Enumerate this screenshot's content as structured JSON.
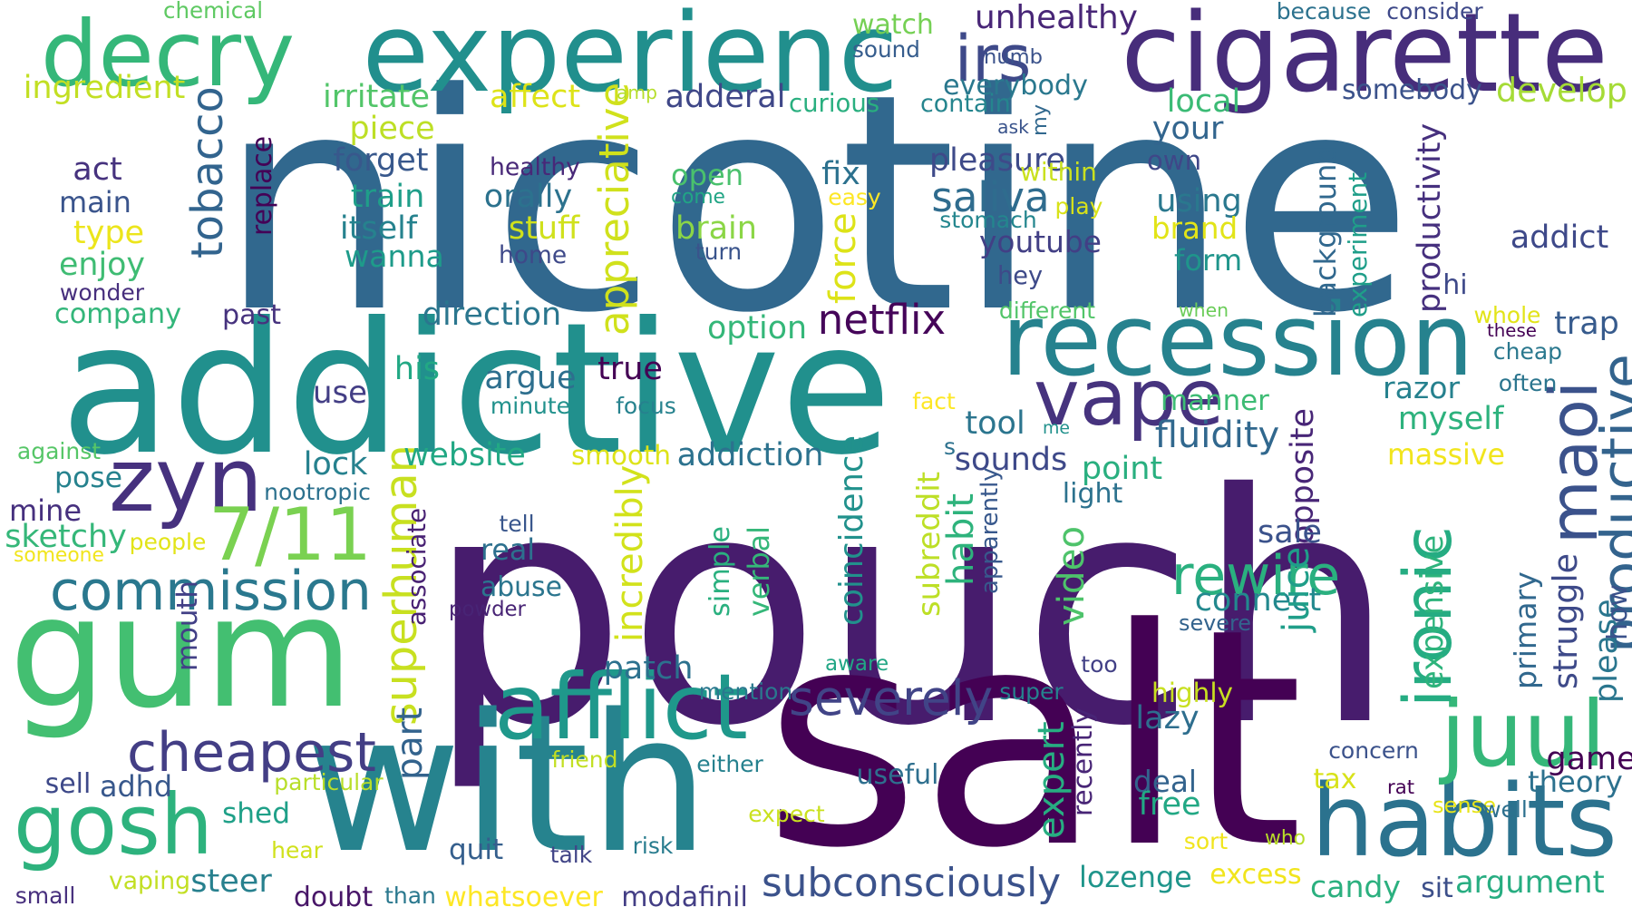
{
  "words": [
    {
      "text": "nicotine",
      "color": "#31688e"
    },
    {
      "text": "pouch",
      "color": "#471c6d"
    },
    {
      "text": "addictive",
      "color": "#21908d"
    },
    {
      "text": "salt",
      "color": "#440154"
    },
    {
      "text": "gum",
      "color": "#43bf71"
    },
    {
      "text": "with",
      "color": "#26838e"
    },
    {
      "text": "experienc",
      "color": "#218f8d"
    },
    {
      "text": "cigarette",
      "color": "#472d7b"
    },
    {
      "text": "decry",
      "color": "#35b779"
    },
    {
      "text": "recession",
      "color": "#26828e"
    },
    {
      "text": "habits",
      "color": "#2b728e"
    },
    {
      "text": "juul",
      "color": "#35b779"
    },
    {
      "text": "vape",
      "color": "#46337e"
    },
    {
      "text": "irs",
      "color": "#3e4989"
    },
    {
      "text": "zyn",
      "color": "#46317e"
    },
    {
      "text": "7/11",
      "color": "#7ad151"
    },
    {
      "text": "afflict",
      "color": "#1f988b"
    },
    {
      "text": "ironic",
      "color": "#25ac82"
    },
    {
      "text": "maoi",
      "color": "#3b528b"
    },
    {
      "text": "productive",
      "color": "#33638d"
    },
    {
      "text": "commission",
      "color": "#2a788e"
    },
    {
      "text": "gosh",
      "color": "#2db27d"
    },
    {
      "text": "cheapest",
      "color": "#433e85"
    },
    {
      "text": "severely",
      "color": "#414487"
    },
    {
      "text": "rewire",
      "color": "#2ab07f"
    },
    {
      "text": "superhuman",
      "color": "#c8e020"
    },
    {
      "text": "tobacco",
      "color": "#32648e"
    },
    {
      "text": "appreciative",
      "color": "#d0e11c"
    },
    {
      "text": "subconsciously",
      "color": "#3b528b"
    },
    {
      "text": "netflix",
      "color": "#450559"
    },
    {
      "text": "saliva",
      "color": "#2f6c8e"
    },
    {
      "text": "fluidity",
      "color": "#31688e"
    },
    {
      "text": "pleasure",
      "color": "#3e4a89"
    },
    {
      "text": "everybody",
      "color": "#2a788e"
    },
    {
      "text": "unhealthy",
      "color": "#482677"
    },
    {
      "text": "watch",
      "color": "#75d054"
    },
    {
      "text": "sound",
      "color": "#365d8d"
    },
    {
      "text": "numb",
      "color": "#3b528b"
    },
    {
      "text": "chemical",
      "color": "#5ec962"
    },
    {
      "text": "because",
      "color": "#2c728e"
    },
    {
      "text": "consider",
      "color": "#3e4989"
    },
    {
      "text": "somebody",
      "color": "#3b528b"
    },
    {
      "text": "develop",
      "color": "#a5db36"
    },
    {
      "text": "ingredient",
      "color": "#c2df23"
    },
    {
      "text": "irritate",
      "color": "#52c569"
    },
    {
      "text": "affect",
      "color": "#dde318"
    },
    {
      "text": "amp",
      "color": "#b5de2b"
    },
    {
      "text": "adderal",
      "color": "#3f4788"
    },
    {
      "text": "curious",
      "color": "#29af7f"
    },
    {
      "text": "contain",
      "color": "#25858e"
    },
    {
      "text": "local",
      "color": "#3bbb75"
    },
    {
      "text": "your",
      "color": "#32658e"
    },
    {
      "text": "own",
      "color": "#3f4788"
    },
    {
      "text": "piece",
      "color": "#bddf26"
    },
    {
      "text": "forget",
      "color": "#38588c"
    },
    {
      "text": "healthy",
      "color": "#482878"
    },
    {
      "text": "open",
      "color": "#4ac16d"
    },
    {
      "text": "fix",
      "color": "#2c718e"
    },
    {
      "text": "ask",
      "color": "#3a548c"
    },
    {
      "text": "my",
      "color": "#31688e"
    },
    {
      "text": "within",
      "color": "#cae11f"
    },
    {
      "text": "act",
      "color": "#46327e"
    },
    {
      "text": "main",
      "color": "#3a548c"
    },
    {
      "text": "type",
      "color": "#ece51b"
    },
    {
      "text": "enjoy",
      "color": "#3fbc73"
    },
    {
      "text": "wonder",
      "color": "#472f7d"
    },
    {
      "text": "replace",
      "color": "#440256"
    },
    {
      "text": "train",
      "color": "#1f9e89"
    },
    {
      "text": "itself",
      "color": "#26828e"
    },
    {
      "text": "wanna",
      "color": "#1e9b8a"
    },
    {
      "text": "orally",
      "color": "#2c728e"
    },
    {
      "text": "stuff",
      "color": "#d0e11c"
    },
    {
      "text": "home",
      "color": "#3e4989"
    },
    {
      "text": "come",
      "color": "#21a585"
    },
    {
      "text": "easy",
      "color": "#fde725"
    },
    {
      "text": "brain",
      "color": "#8bd646"
    },
    {
      "text": "turn",
      "color": "#3a548c"
    },
    {
      "text": "play",
      "color": "#d8e219"
    },
    {
      "text": "stomach",
      "color": "#24868e"
    },
    {
      "text": "youtube",
      "color": "#423f85"
    },
    {
      "text": "hey",
      "color": "#3e4a89"
    },
    {
      "text": "using",
      "color": "#2a788e"
    },
    {
      "text": "brand",
      "color": "#e2e418"
    },
    {
      "text": "form",
      "color": "#1f958b"
    },
    {
      "text": "background",
      "color": "#31688e"
    },
    {
      "text": "experiment",
      "color": "#1f9e89"
    },
    {
      "text": "productivity",
      "color": "#46307e"
    },
    {
      "text": "addict",
      "color": "#3e4989"
    },
    {
      "text": "hi",
      "color": "#3e4989"
    },
    {
      "text": "company",
      "color": "#33b67a"
    },
    {
      "text": "past",
      "color": "#46327e"
    },
    {
      "text": "direction",
      "color": "#2a768e"
    },
    {
      "text": "option",
      "color": "#35b779"
    },
    {
      "text": "force",
      "color": "#dde318"
    },
    {
      "text": "different",
      "color": "#52c569"
    },
    {
      "text": "when",
      "color": "#6ccd5a"
    },
    {
      "text": "whole",
      "color": "#e2e418"
    },
    {
      "text": "these",
      "color": "#440154"
    },
    {
      "text": "trap",
      "color": "#375b8d"
    },
    {
      "text": "cheap",
      "color": "#2a788e"
    },
    {
      "text": "often",
      "color": "#2b758e"
    },
    {
      "text": "his",
      "color": "#22a884"
    },
    {
      "text": "use",
      "color": "#433e85"
    },
    {
      "text": "argue",
      "color": "#2e6f8e"
    },
    {
      "text": "minute",
      "color": "#21918c"
    },
    {
      "text": "true",
      "color": "#440154"
    },
    {
      "text": "focus",
      "color": "#26828e"
    },
    {
      "text": "fact",
      "color": "#fde725"
    },
    {
      "text": "tool",
      "color": "#2b758e"
    },
    {
      "text": "me",
      "color": "#21918c"
    },
    {
      "text": "manner",
      "color": "#3dbc74"
    },
    {
      "text": "razor",
      "color": "#26818e"
    },
    {
      "text": "myself",
      "color": "#2db27d"
    },
    {
      "text": "massive",
      "color": "#f1e51d"
    },
    {
      "text": "against",
      "color": "#56c667"
    },
    {
      "text": "lock",
      "color": "#26818e"
    },
    {
      "text": "pose",
      "color": "#26828e"
    },
    {
      "text": "mine",
      "color": "#46307e"
    },
    {
      "text": "nootropic",
      "color": "#2c718e"
    },
    {
      "text": "website",
      "color": "#22a884"
    },
    {
      "text": "smooth",
      "color": "#dde318"
    },
    {
      "text": "addiction",
      "color": "#2c728e"
    },
    {
      "text": "coincidence",
      "color": "#21918c"
    },
    {
      "text": "sounds",
      "color": "#3e4989"
    },
    {
      "text": "point",
      "color": "#29af7f"
    },
    {
      "text": "s",
      "color": "#2c718e"
    },
    {
      "text": "opposite",
      "color": "#482677"
    },
    {
      "text": "light",
      "color": "#2c728e"
    },
    {
      "text": "sketchy",
      "color": "#35b779"
    },
    {
      "text": "people",
      "color": "#e2e418"
    },
    {
      "text": "someone",
      "color": "#f1e51d"
    },
    {
      "text": "associate",
      "color": "#482173"
    },
    {
      "text": "tell",
      "color": "#39568c"
    },
    {
      "text": "real",
      "color": "#2d708e"
    },
    {
      "text": "abuse",
      "color": "#2b758e"
    },
    {
      "text": "powder",
      "color": "#482475"
    },
    {
      "text": "incredibly",
      "color": "#d2e21b"
    },
    {
      "text": "simple",
      "color": "#2ab07f"
    },
    {
      "text": "verbal",
      "color": "#35b779"
    },
    {
      "text": "subreddit",
      "color": "#bddf26"
    },
    {
      "text": "habit",
      "color": "#2eb37c"
    },
    {
      "text": "apparently",
      "color": "#38588c"
    },
    {
      "text": "video",
      "color": "#4ec36b"
    },
    {
      "text": "sale",
      "color": "#3b528b"
    },
    {
      "text": "connect",
      "color": "#23898e"
    },
    {
      "text": "severe",
      "color": "#33638d"
    },
    {
      "text": "juice",
      "color": "#1f9e89"
    },
    {
      "text": "expensive",
      "color": "#2eb37c"
    },
    {
      "text": "primary",
      "color": "#31688e"
    },
    {
      "text": "struggle",
      "color": "#3e4a89"
    },
    {
      "text": "please",
      "color": "#2a768e"
    },
    {
      "text": "how",
      "color": "#3b528b"
    },
    {
      "text": "mouth",
      "color": "#424086"
    },
    {
      "text": "patch",
      "color": "#2c718e"
    },
    {
      "text": "aware",
      "color": "#21a685"
    },
    {
      "text": "too",
      "color": "#424086"
    },
    {
      "text": "mention",
      "color": "#2a788e"
    },
    {
      "text": "super",
      "color": "#26828e"
    },
    {
      "text": "highly",
      "color": "#c8e020"
    },
    {
      "text": "lazy",
      "color": "#2e6e8e"
    },
    {
      "text": "part",
      "color": "#33638d"
    },
    {
      "text": "friend",
      "color": "#c2df23"
    },
    {
      "text": "either",
      "color": "#26818e"
    },
    {
      "text": "expert",
      "color": "#27ad81"
    },
    {
      "text": "recently",
      "color": "#482576"
    },
    {
      "text": "concern",
      "color": "#3b528b"
    },
    {
      "text": "game",
      "color": "#440154"
    },
    {
      "text": "theory",
      "color": "#2c718e"
    },
    {
      "text": "sell",
      "color": "#3e4989"
    },
    {
      "text": "adhd",
      "color": "#38588c"
    },
    {
      "text": "particular",
      "color": "#b8de29"
    },
    {
      "text": "shed",
      "color": "#1fa088"
    },
    {
      "text": "useful",
      "color": "#2e6f8e"
    },
    {
      "text": "deal",
      "color": "#33638d"
    },
    {
      "text": "free",
      "color": "#22a884"
    },
    {
      "text": "tax",
      "color": "#d8e219"
    },
    {
      "text": "rat",
      "color": "#440154"
    },
    {
      "text": "sense",
      "color": "#e7e419"
    },
    {
      "text": "well",
      "color": "#2d708e"
    },
    {
      "text": "hear",
      "color": "#d0e11c"
    },
    {
      "text": "expect",
      "color": "#cae11f"
    },
    {
      "text": "sort",
      "color": "#f1e51d"
    },
    {
      "text": "who",
      "color": "#b8de29"
    },
    {
      "text": "small",
      "color": "#472f7d"
    },
    {
      "text": "vaping",
      "color": "#c2df23"
    },
    {
      "text": "steer",
      "color": "#27808e"
    },
    {
      "text": "quit",
      "color": "#355f8d"
    },
    {
      "text": "talk",
      "color": "#414487"
    },
    {
      "text": "risk",
      "color": "#287c8e"
    },
    {
      "text": "lozenge",
      "color": "#1f958b"
    },
    {
      "text": "excess",
      "color": "#f1e51d"
    },
    {
      "text": "candy",
      "color": "#2bb07f"
    },
    {
      "text": "sit",
      "color": "#3c4f8a"
    },
    {
      "text": "argument",
      "color": "#27ad81"
    },
    {
      "text": "doubt",
      "color": "#481668"
    },
    {
      "text": "than",
      "color": "#2a788e"
    },
    {
      "text": "whatsoever",
      "color": "#fde725"
    },
    {
      "text": "modafinil",
      "color": "#433e85"
    }
  ]
}
